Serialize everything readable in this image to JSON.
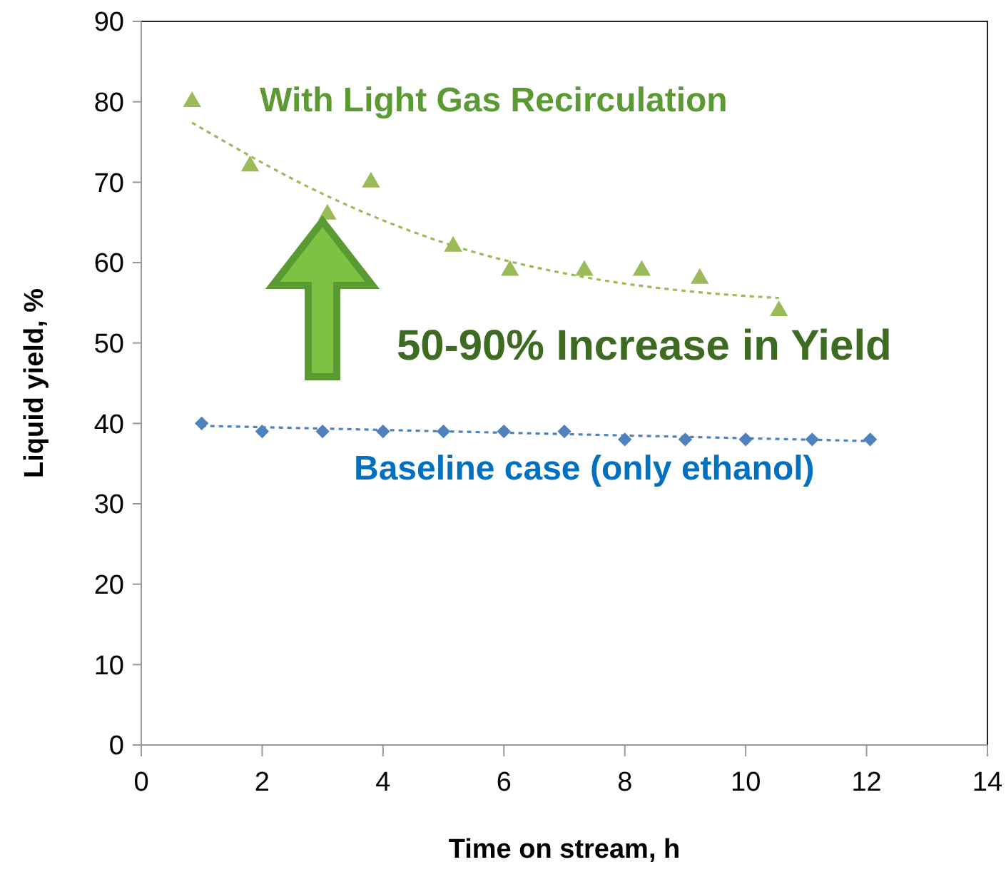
{
  "chart_data": {
    "type": "scatter",
    "xlabel": "Time on stream, h",
    "ylabel": "Liquid yield, %",
    "xlim": [
      0,
      14
    ],
    "xticks": [
      0,
      2,
      4,
      6,
      8,
      10,
      12,
      14
    ],
    "ylim": [
      0,
      90
    ],
    "yticks": [
      0,
      10,
      20,
      30,
      40,
      50,
      60,
      70,
      80,
      90
    ],
    "grid": false,
    "annotations": [
      "50-90% Increase in Yield"
    ],
    "series": [
      {
        "name": "With Light Gas Recirculation",
        "marker": "triangle",
        "color": "#9bbb59",
        "x": [
          0.84,
          1.8,
          3.08,
          3.8,
          5.16,
          6.1,
          7.33,
          8.28,
          9.24,
          10.55
        ],
        "values": [
          80,
          72,
          66,
          70,
          62,
          59,
          59,
          59,
          58,
          54
        ]
      },
      {
        "name": "Baseline case (only ethanol)",
        "marker": "diamond",
        "color": "#4f81bd",
        "x": [
          1,
          2,
          3,
          4,
          5,
          6,
          7,
          8,
          9,
          10,
          11.1,
          12.06
        ],
        "values": [
          40,
          39,
          39,
          39,
          39,
          39,
          39,
          38,
          38,
          38,
          38,
          38
        ]
      },
      {
        "type": "line",
        "marker": "none",
        "line_style": "dashed",
        "color": "#9bbb59",
        "x": [
          0.84,
          3.1,
          5.16,
          7.33,
          9.24,
          10.55
        ],
        "values": [
          77.4,
          68.2,
          62.1,
          58.2,
          56.3,
          55.6
        ]
      },
      {
        "type": "line",
        "marker": "none",
        "line_style": "dashed",
        "color": "#4f81bd",
        "x": [
          1,
          12.06
        ],
        "values": [
          39.7,
          37.8
        ]
      }
    ]
  }
}
